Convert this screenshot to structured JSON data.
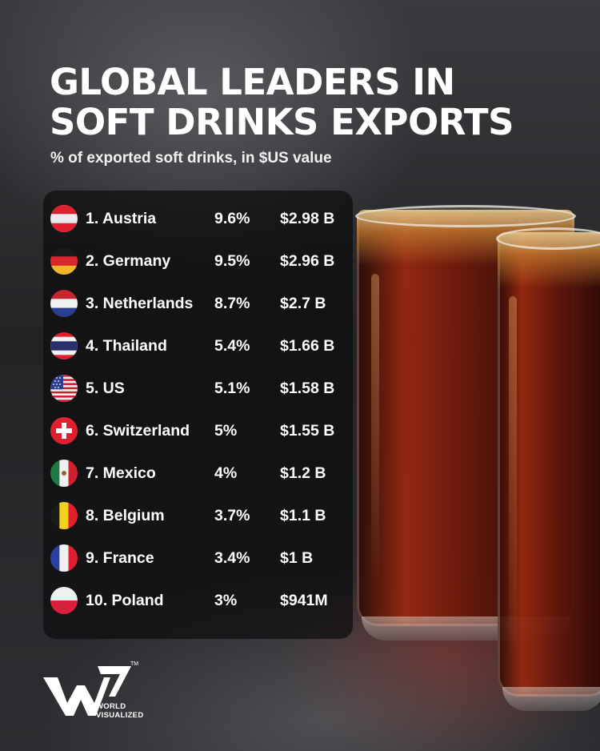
{
  "header": {
    "title_line1": "GLOBAL LEADERS IN",
    "title_line2": "SOFT DRINKS EXPORTS",
    "subtitle": "% of exported soft drinks, in $US value"
  },
  "rows": [
    {
      "country": "1. Austria",
      "percent": "9.6%",
      "value": "$2.98 B",
      "flag": "austria-flag-icon"
    },
    {
      "country": "2. Germany",
      "percent": "9.5%",
      "value": "$2.96 B",
      "flag": "germany-flag-icon"
    },
    {
      "country": "3. Netherlands",
      "percent": "8.7%",
      "value": "$2.7 B",
      "flag": "netherlands-flag-icon"
    },
    {
      "country": "4. Thailand",
      "percent": "5.4%",
      "value": "$1.66 B",
      "flag": "thailand-flag-icon"
    },
    {
      "country": "5. US",
      "percent": "5.1%",
      "value": "$1.58 B",
      "flag": "us-flag-icon"
    },
    {
      "country": "6. Switzerland",
      "percent": "5%",
      "value": "$1.55 B",
      "flag": "switzerland-flag-icon"
    },
    {
      "country": "7. Mexico",
      "percent": "4%",
      "value": "$1.2 B",
      "flag": "mexico-flag-icon"
    },
    {
      "country": "8. Belgium",
      "percent": "3.7%",
      "value": "$1.1 B",
      "flag": "belgium-flag-icon"
    },
    {
      "country": "9. France",
      "percent": "3.4%",
      "value": "$1 B",
      "flag": "france-flag-icon"
    },
    {
      "country": "10. Poland",
      "percent": "3%",
      "value": "$941M",
      "flag": "poland-flag-icon"
    }
  ],
  "logo": {
    "line1": "WORLD",
    "line2": "VISUALIZED",
    "trademark": "TM"
  },
  "colors": {
    "panel": "#0c0c0e",
    "text": "#ffffff",
    "drink": "#8a2410"
  }
}
